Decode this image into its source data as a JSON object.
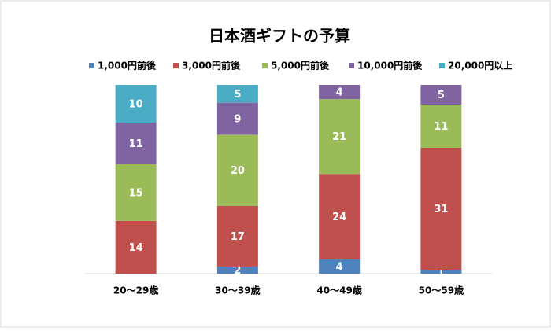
{
  "chart_data": {
    "type": "bar",
    "stacking": "percent",
    "title": "日本酒ギフトの予算",
    "categories": [
      "20～29歳",
      "30～39歳",
      "40～49歳",
      "50～59歳"
    ],
    "series": [
      {
        "name": "1,000円前後",
        "color": "#4f81bd",
        "values": [
          null,
          2,
          4,
          1
        ]
      },
      {
        "name": "3,000円前後",
        "color": "#c0504d",
        "values": [
          14,
          17,
          24,
          31
        ]
      },
      {
        "name": "5,000円前後",
        "color": "#9bbb59",
        "values": [
          15,
          20,
          21,
          11
        ]
      },
      {
        "name": "10,000円前後",
        "color": "#8064a2",
        "values": [
          11,
          9,
          4,
          5
        ]
      },
      {
        "name": "20,000円以上",
        "color": "#4bacc6",
        "values": [
          10,
          5,
          null,
          null
        ]
      }
    ],
    "legend": "top"
  }
}
